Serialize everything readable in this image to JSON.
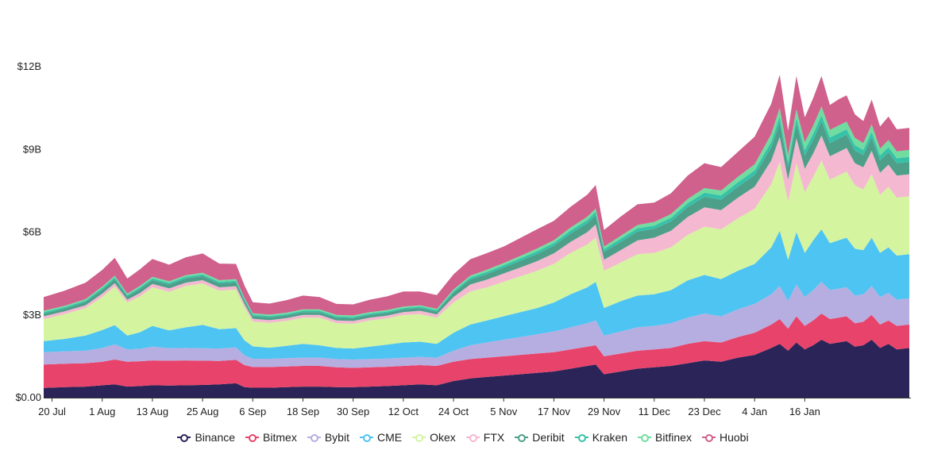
{
  "chart_data": {
    "type": "area",
    "stacked": true,
    "title": "",
    "xlabel": "",
    "ylabel": "",
    "ylim": [
      0,
      13.3
    ],
    "y_unit": "B",
    "y_ticks": [
      {
        "value": 0,
        "label": "$0.00"
      },
      {
        "value": 3,
        "label": "$3B"
      },
      {
        "value": 6,
        "label": "$6B"
      },
      {
        "value": 9,
        "label": "$9B"
      },
      {
        "value": 12,
        "label": "$12B"
      }
    ],
    "x_range_days": [
      0,
      207
    ],
    "x_ticks": [
      {
        "day": 2,
        "label": "20 Jul"
      },
      {
        "day": 14,
        "label": "1 Aug"
      },
      {
        "day": 26,
        "label": "13 Aug"
      },
      {
        "day": 38,
        "label": "25 Aug"
      },
      {
        "day": 50,
        "label": "6 Sep"
      },
      {
        "day": 62,
        "label": "18 Sep"
      },
      {
        "day": 74,
        "label": "30 Sep"
      },
      {
        "day": 86,
        "label": "12 Oct"
      },
      {
        "day": 98,
        "label": "24 Oct"
      },
      {
        "day": 110,
        "label": "5 Nov"
      },
      {
        "day": 122,
        "label": "17 Nov"
      },
      {
        "day": 134,
        "label": "29 Nov"
      },
      {
        "day": 146,
        "label": "11 Dec"
      },
      {
        "day": 158,
        "label": "23 Dec"
      },
      {
        "day": 170,
        "label": "4 Jan"
      },
      {
        "day": 182,
        "label": "16 Jan"
      }
    ],
    "x": [
      0,
      5,
      10,
      14,
      17,
      20,
      23,
      26,
      30,
      34,
      38,
      42,
      46,
      48,
      50,
      54,
      58,
      62,
      66,
      70,
      74,
      78,
      82,
      86,
      90,
      94,
      98,
      102,
      106,
      110,
      114,
      118,
      122,
      126,
      130,
      132,
      134,
      138,
      142,
      146,
      150,
      154,
      158,
      162,
      166,
      170,
      174,
      176,
      178,
      180,
      182,
      184,
      186,
      188,
      190,
      192,
      194,
      196,
      198,
      200,
      202,
      204,
      207
    ],
    "series": [
      {
        "name": "Binance",
        "color": "#2a2458",
        "values": [
          0.35,
          0.38,
          0.4,
          0.45,
          0.48,
          0.4,
          0.42,
          0.45,
          0.44,
          0.45,
          0.46,
          0.48,
          0.52,
          0.38,
          0.36,
          0.36,
          0.38,
          0.4,
          0.4,
          0.38,
          0.38,
          0.4,
          0.42,
          0.45,
          0.48,
          0.45,
          0.6,
          0.7,
          0.75,
          0.8,
          0.85,
          0.9,
          0.95,
          1.05,
          1.15,
          1.2,
          0.85,
          0.95,
          1.05,
          1.1,
          1.15,
          1.25,
          1.35,
          1.3,
          1.45,
          1.55,
          1.8,
          1.95,
          1.7,
          2.0,
          1.75,
          1.9,
          2.1,
          1.95,
          2.0,
          2.05,
          1.85,
          1.9,
          2.1,
          1.8,
          1.95,
          1.75,
          1.8
        ]
      },
      {
        "name": "Bitmex",
        "color": "#e8436a",
        "values": [
          0.85,
          0.85,
          0.85,
          0.85,
          0.9,
          0.9,
          0.9,
          0.9,
          0.9,
          0.9,
          0.88,
          0.85,
          0.85,
          0.8,
          0.75,
          0.75,
          0.75,
          0.75,
          0.75,
          0.72,
          0.7,
          0.7,
          0.7,
          0.7,
          0.7,
          0.7,
          0.7,
          0.7,
          0.7,
          0.7,
          0.7,
          0.7,
          0.7,
          0.7,
          0.7,
          0.7,
          0.65,
          0.65,
          0.65,
          0.65,
          0.65,
          0.7,
          0.7,
          0.7,
          0.75,
          0.8,
          0.85,
          0.9,
          0.8,
          0.95,
          0.85,
          0.9,
          0.95,
          0.9,
          0.9,
          0.9,
          0.85,
          0.85,
          0.9,
          0.85,
          0.85,
          0.85,
          0.85
        ]
      },
      {
        "name": "Bybit",
        "color": "#b6aee0",
        "values": [
          0.45,
          0.45,
          0.45,
          0.5,
          0.55,
          0.45,
          0.45,
          0.5,
          0.45,
          0.45,
          0.45,
          0.45,
          0.45,
          0.35,
          0.3,
          0.3,
          0.3,
          0.3,
          0.3,
          0.3,
          0.3,
          0.3,
          0.3,
          0.3,
          0.3,
          0.3,
          0.4,
          0.5,
          0.55,
          0.6,
          0.65,
          0.7,
          0.75,
          0.8,
          0.85,
          0.9,
          0.75,
          0.8,
          0.85,
          0.85,
          0.9,
          0.95,
          1.0,
          0.95,
          1.0,
          1.05,
          1.1,
          1.2,
          1.0,
          1.15,
          1.05,
          1.1,
          1.15,
          1.05,
          1.05,
          1.05,
          1.0,
          1.0,
          1.05,
          1.0,
          1.0,
          0.95,
          0.95
        ]
      },
      {
        "name": "CME",
        "color": "#4ec4f2",
        "values": [
          0.4,
          0.45,
          0.55,
          0.65,
          0.7,
          0.5,
          0.6,
          0.75,
          0.65,
          0.75,
          0.85,
          0.7,
          0.7,
          0.55,
          0.45,
          0.4,
          0.45,
          0.5,
          0.45,
          0.4,
          0.4,
          0.45,
          0.5,
          0.55,
          0.55,
          0.5,
          0.65,
          0.75,
          0.8,
          0.85,
          0.9,
          0.95,
          1.05,
          1.2,
          1.3,
          1.4,
          1.0,
          1.1,
          1.15,
          1.15,
          1.2,
          1.35,
          1.4,
          1.35,
          1.4,
          1.45,
          1.7,
          2.0,
          1.5,
          1.9,
          1.6,
          1.8,
          1.9,
          1.7,
          1.75,
          1.8,
          1.7,
          1.6,
          1.75,
          1.6,
          1.65,
          1.6,
          1.6
        ]
      },
      {
        "name": "Okex",
        "color": "#d4f4a0",
        "values": [
          0.8,
          0.9,
          1.0,
          1.2,
          1.4,
          1.2,
          1.3,
          1.4,
          1.4,
          1.5,
          1.5,
          1.4,
          1.4,
          1.2,
          0.9,
          0.9,
          0.9,
          0.95,
          1.0,
          0.9,
          0.9,
          0.95,
          0.95,
          1.0,
          1.0,
          0.95,
          1.1,
          1.2,
          1.2,
          1.25,
          1.3,
          1.35,
          1.4,
          1.5,
          1.55,
          1.6,
          1.35,
          1.4,
          1.5,
          1.5,
          1.55,
          1.65,
          1.75,
          1.8,
          1.9,
          2.0,
          2.3,
          2.5,
          2.1,
          2.5,
          2.2,
          2.3,
          2.5,
          2.3,
          2.35,
          2.4,
          2.3,
          2.2,
          2.3,
          2.1,
          2.2,
          2.1,
          2.1
        ]
      },
      {
        "name": "FTX",
        "color": "#f4b8d0",
        "values": [
          0.1,
          0.1,
          0.1,
          0.12,
          0.12,
          0.1,
          0.12,
          0.12,
          0.12,
          0.12,
          0.12,
          0.12,
          0.12,
          0.12,
          0.1,
          0.1,
          0.1,
          0.1,
          0.1,
          0.1,
          0.1,
          0.1,
          0.1,
          0.1,
          0.12,
          0.12,
          0.2,
          0.25,
          0.28,
          0.3,
          0.32,
          0.35,
          0.38,
          0.4,
          0.45,
          0.48,
          0.4,
          0.45,
          0.5,
          0.55,
          0.6,
          0.65,
          0.7,
          0.7,
          0.75,
          0.8,
          0.85,
          0.9,
          0.8,
          0.9,
          0.85,
          0.85,
          0.9,
          0.85,
          0.85,
          0.85,
          0.8,
          0.8,
          0.85,
          0.8,
          0.8,
          0.8,
          0.8
        ]
      },
      {
        "name": "Deribit",
        "color": "#4e9f8a",
        "values": [
          0.1,
          0.1,
          0.12,
          0.14,
          0.15,
          0.12,
          0.14,
          0.14,
          0.14,
          0.15,
          0.15,
          0.14,
          0.14,
          0.12,
          0.1,
          0.1,
          0.1,
          0.1,
          0.1,
          0.1,
          0.1,
          0.1,
          0.1,
          0.1,
          0.1,
          0.1,
          0.15,
          0.18,
          0.2,
          0.22,
          0.24,
          0.26,
          0.28,
          0.3,
          0.32,
          0.34,
          0.28,
          0.3,
          0.32,
          0.32,
          0.34,
          0.36,
          0.38,
          0.38,
          0.4,
          0.42,
          0.48,
          0.52,
          0.45,
          0.52,
          0.48,
          0.5,
          0.52,
          0.48,
          0.48,
          0.48,
          0.46,
          0.45,
          0.48,
          0.45,
          0.45,
          0.45,
          0.45
        ]
      },
      {
        "name": "Kraken",
        "color": "#36c2a8",
        "values": [
          0.05,
          0.05,
          0.05,
          0.06,
          0.06,
          0.05,
          0.06,
          0.06,
          0.06,
          0.06,
          0.06,
          0.06,
          0.06,
          0.05,
          0.05,
          0.05,
          0.05,
          0.05,
          0.05,
          0.05,
          0.05,
          0.05,
          0.05,
          0.05,
          0.05,
          0.05,
          0.06,
          0.07,
          0.08,
          0.08,
          0.09,
          0.1,
          0.1,
          0.11,
          0.12,
          0.12,
          0.1,
          0.11,
          0.12,
          0.12,
          0.13,
          0.14,
          0.15,
          0.15,
          0.16,
          0.17,
          0.2,
          0.22,
          0.18,
          0.22,
          0.2,
          0.21,
          0.22,
          0.2,
          0.2,
          0.2,
          0.19,
          0.18,
          0.2,
          0.18,
          0.18,
          0.18,
          0.18
        ]
      },
      {
        "name": "Bitfinex",
        "color": "#70dca0",
        "values": [
          0.05,
          0.05,
          0.05,
          0.06,
          0.06,
          0.05,
          0.06,
          0.06,
          0.06,
          0.06,
          0.06,
          0.06,
          0.06,
          0.05,
          0.05,
          0.05,
          0.05,
          0.05,
          0.05,
          0.05,
          0.05,
          0.05,
          0.05,
          0.05,
          0.05,
          0.05,
          0.06,
          0.07,
          0.08,
          0.08,
          0.09,
          0.1,
          0.1,
          0.11,
          0.12,
          0.12,
          0.1,
          0.11,
          0.12,
          0.13,
          0.14,
          0.15,
          0.17,
          0.18,
          0.2,
          0.22,
          0.28,
          0.32,
          0.25,
          0.32,
          0.28,
          0.3,
          0.32,
          0.28,
          0.28,
          0.28,
          0.27,
          0.25,
          0.28,
          0.25,
          0.26,
          0.25,
          0.25
        ]
      },
      {
        "name": "Huobi",
        "color": "#d0608c",
        "values": [
          0.5,
          0.55,
          0.6,
          0.6,
          0.65,
          0.55,
          0.6,
          0.65,
          0.6,
          0.65,
          0.7,
          0.6,
          0.55,
          0.45,
          0.4,
          0.4,
          0.45,
          0.5,
          0.45,
          0.4,
          0.4,
          0.45,
          0.5,
          0.55,
          0.5,
          0.5,
          0.55,
          0.6,
          0.6,
          0.6,
          0.65,
          0.7,
          0.7,
          0.75,
          0.8,
          0.85,
          0.6,
          0.7,
          0.75,
          0.7,
          0.75,
          0.85,
          0.9,
          0.85,
          0.9,
          1.0,
          1.1,
          1.2,
          0.9,
          1.2,
          0.9,
          1.0,
          1.1,
          0.9,
          0.95,
          0.95,
          0.85,
          0.8,
          0.9,
          0.8,
          0.85,
          0.8,
          0.8
        ]
      }
    ],
    "legend_position": "bottom-center",
    "grid": false
  }
}
